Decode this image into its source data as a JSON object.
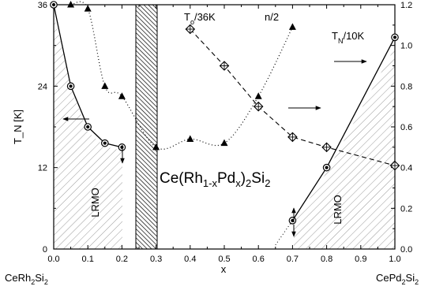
{
  "chart_data": {
    "type": "scatter",
    "title": "Ce(Rh1-xPdx)2Si2",
    "xlabel": "x",
    "ylabel": "T_N [K]",
    "xlim": [
      0,
      1.0
    ],
    "ylim_left": [
      0,
      36
    ],
    "ylim_right": [
      0,
      1.2
    ],
    "x_ticks": [
      "0.0",
      "0.1",
      "0.2",
      "0.3",
      "0.4",
      "0.5",
      "0.6",
      "0.7",
      "0.8",
      "0.9",
      "1.0"
    ],
    "y_ticks_left": [
      "0",
      "12",
      "24",
      "36"
    ],
    "y_ticks_right": [
      "0.0",
      "0.2",
      "0.4",
      "0.6",
      "0.8",
      "1.0",
      "1.2"
    ],
    "end_labels": {
      "left": "CeRh2Si2",
      "right": "CePd2Si2"
    },
    "region_labels": [
      "LRMO",
      "LRMO"
    ],
    "series": [
      {
        "name": "T_N/10K",
        "marker": "circle-dot",
        "axis": "right",
        "x": [
          0.0,
          0.05,
          0.1,
          0.15,
          0.2,
          0.7,
          0.8,
          1.0
        ],
        "y": [
          1.2,
          0.8,
          0.6,
          0.52,
          0.5,
          0.14,
          0.4,
          1.04
        ]
      },
      {
        "name": "n/2",
        "marker": "triangle",
        "axis": "right",
        "x": [
          0.05,
          0.1,
          0.15,
          0.2,
          0.3,
          0.4,
          0.5,
          0.6,
          0.7
        ],
        "y": [
          1.2,
          1.18,
          0.8,
          0.75,
          0.5,
          0.54,
          0.52,
          0.75,
          1.09
        ]
      },
      {
        "name": "T_o/36K",
        "marker": "diamond-cross",
        "axis": "right",
        "x": [
          0.4,
          0.5,
          0.6,
          0.7,
          0.8,
          1.0
        ],
        "y": [
          1.08,
          0.9,
          0.7,
          0.55,
          0.5,
          0.41
        ]
      }
    ],
    "legend": {
      "t0": {
        "main": "T",
        "sub": "o",
        "rest": "/36K"
      },
      "n": "n/2",
      "tn": {
        "main": "T",
        "sub": "N",
        "rest": "/10K"
      }
    }
  }
}
